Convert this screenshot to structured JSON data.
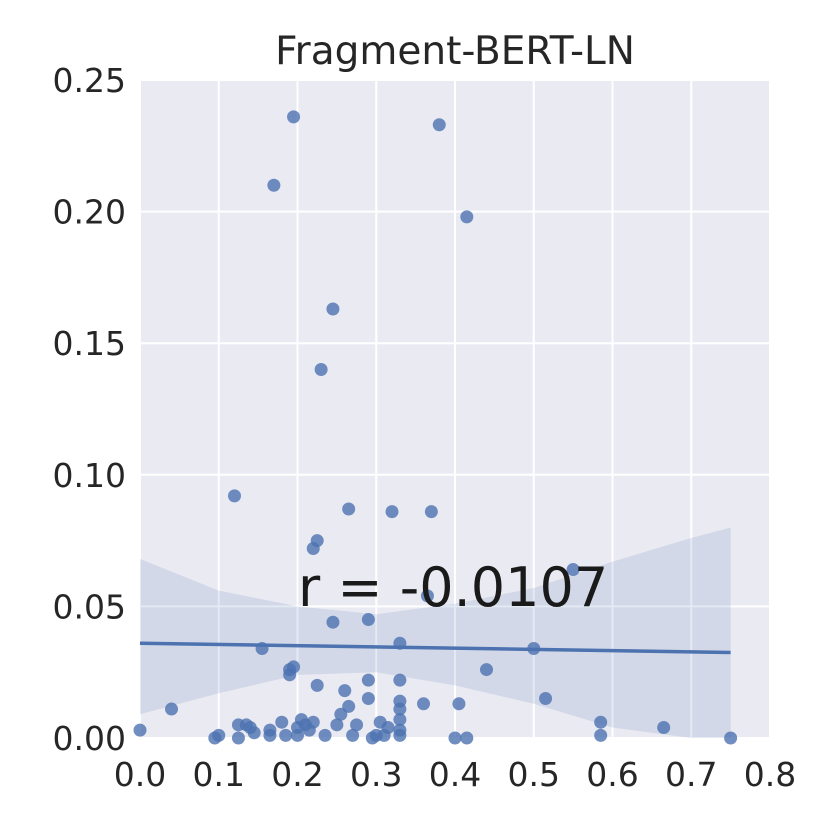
{
  "chart_data": {
    "type": "scatter",
    "title": "Fragment-BERT-LN",
    "xlabel": "",
    "ylabel": "",
    "xlim": [
      0.0,
      0.8
    ],
    "ylim": [
      0.0,
      0.25
    ],
    "x_ticks": [
      "0.0",
      "0.1",
      "0.2",
      "0.3",
      "0.4",
      "0.5",
      "0.6",
      "0.7",
      "0.8"
    ],
    "y_ticks": [
      "0.00",
      "0.05",
      "0.10",
      "0.15",
      "0.20",
      "0.25"
    ],
    "grid": true,
    "annotation": "r = -0.0107",
    "colors": {
      "background": "#eaeaf2",
      "grid": "#ffffff",
      "points": "#4c72b0",
      "regression_line": "#4c72b0",
      "confidence_band": "#4c72b0"
    },
    "regression": {
      "x": [
        0.0,
        0.75
      ],
      "y": [
        0.036,
        0.0325
      ]
    },
    "confidence_band": {
      "x": [
        0.0,
        0.1,
        0.2,
        0.3,
        0.4,
        0.5,
        0.6,
        0.7,
        0.75
      ],
      "upper": [
        0.068,
        0.056,
        0.05,
        0.047,
        0.051,
        0.057,
        0.067,
        0.076,
        0.08
      ],
      "lower": [
        0.009,
        0.017,
        0.024,
        0.025,
        0.02,
        0.013,
        0.004,
        -0.007,
        -0.012
      ]
    },
    "series": [
      {
        "points": [
          [
            0.0,
            0.003
          ],
          [
            0.04,
            0.011
          ],
          [
            0.095,
            0.0
          ],
          [
            0.1,
            0.001
          ],
          [
            0.12,
            0.092
          ],
          [
            0.125,
            0.005
          ],
          [
            0.125,
            0.0
          ],
          [
            0.135,
            0.005
          ],
          [
            0.14,
            0.004
          ],
          [
            0.145,
            0.002
          ],
          [
            0.155,
            0.034
          ],
          [
            0.165,
            0.003
          ],
          [
            0.165,
            0.001
          ],
          [
            0.17,
            0.21
          ],
          [
            0.18,
            0.006
          ],
          [
            0.185,
            0.001
          ],
          [
            0.19,
            0.024
          ],
          [
            0.19,
            0.026
          ],
          [
            0.195,
            0.236
          ],
          [
            0.195,
            0.027
          ],
          [
            0.2,
            0.004
          ],
          [
            0.2,
            0.001
          ],
          [
            0.205,
            0.007
          ],
          [
            0.21,
            0.005
          ],
          [
            0.215,
            0.003
          ],
          [
            0.22,
            0.072
          ],
          [
            0.22,
            0.006
          ],
          [
            0.225,
            0.075
          ],
          [
            0.225,
            0.02
          ],
          [
            0.23,
            0.14
          ],
          [
            0.235,
            0.001
          ],
          [
            0.245,
            0.163
          ],
          [
            0.245,
            0.044
          ],
          [
            0.25,
            0.005
          ],
          [
            0.255,
            0.009
          ],
          [
            0.26,
            0.018
          ],
          [
            0.265,
            0.087
          ],
          [
            0.265,
            0.012
          ],
          [
            0.27,
            0.001
          ],
          [
            0.275,
            0.005
          ],
          [
            0.29,
            0.045
          ],
          [
            0.29,
            0.022
          ],
          [
            0.29,
            0.015
          ],
          [
            0.295,
            0.0
          ],
          [
            0.3,
            0.001
          ],
          [
            0.305,
            0.006
          ],
          [
            0.31,
            0.001
          ],
          [
            0.315,
            0.004
          ],
          [
            0.32,
            0.086
          ],
          [
            0.33,
            0.036
          ],
          [
            0.33,
            0.022
          ],
          [
            0.33,
            0.014
          ],
          [
            0.33,
            0.011
          ],
          [
            0.33,
            0.007
          ],
          [
            0.33,
            0.003
          ],
          [
            0.33,
            0.001
          ],
          [
            0.36,
            0.013
          ],
          [
            0.365,
            0.054
          ],
          [
            0.37,
            0.086
          ],
          [
            0.38,
            0.233
          ],
          [
            0.4,
            0.0
          ],
          [
            0.405,
            0.013
          ],
          [
            0.415,
            0.198
          ],
          [
            0.415,
            0.0
          ],
          [
            0.44,
            0.026
          ],
          [
            0.5,
            0.034
          ],
          [
            0.515,
            0.015
          ],
          [
            0.55,
            0.064
          ],
          [
            0.585,
            0.006
          ],
          [
            0.585,
            0.001
          ],
          [
            0.665,
            0.004
          ],
          [
            0.75,
            0.0
          ]
        ]
      }
    ]
  }
}
